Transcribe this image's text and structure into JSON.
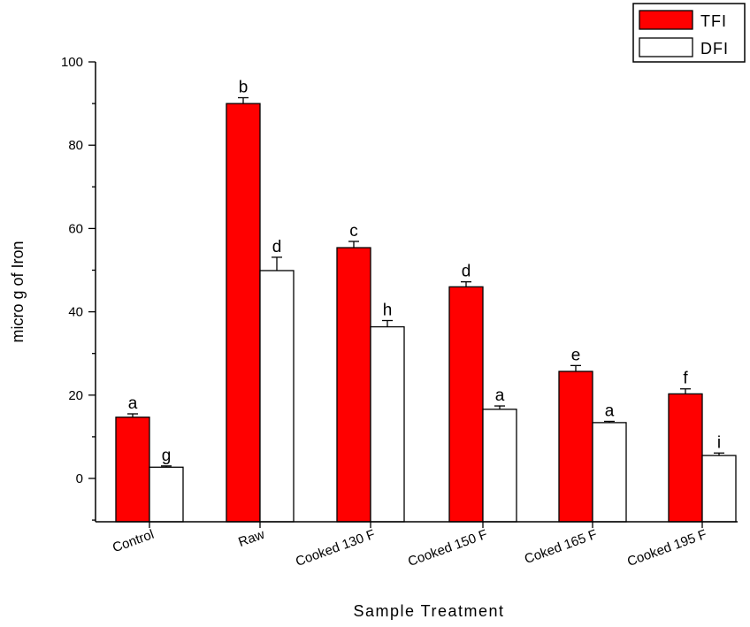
{
  "chart_data": {
    "type": "bar",
    "xlabel": "Sample Treatment",
    "ylabel": "micro g of Iron",
    "ylim": [
      -10,
      100
    ],
    "yticks": [
      0,
      20,
      40,
      60,
      80,
      100
    ],
    "categories": [
      "Control",
      "Raw",
      "Cooked 130 F",
      "Cooked 150 F",
      "Coked 165 F",
      "Cooked 195 F"
    ],
    "series": [
      {
        "name": "TFI",
        "color": "#ff0000",
        "values": [
          14.7,
          90.0,
          55.4,
          46.0,
          25.7,
          20.3
        ],
        "errors": [
          0.8,
          1.4,
          1.5,
          1.2,
          1.4,
          1.2
        ],
        "labels": [
          "a",
          "b",
          "c",
          "d",
          "e",
          "f"
        ]
      },
      {
        "name": "DFI",
        "color": "#ffffff",
        "values": [
          2.7,
          49.9,
          36.4,
          16.6,
          13.4,
          5.5
        ],
        "errors": [
          0.3,
          3.2,
          1.5,
          0.8,
          0.3,
          0.6
        ],
        "labels": [
          "g",
          "d",
          "h",
          "a",
          "a",
          "i"
        ]
      }
    ],
    "legend": {
      "position": "top-right",
      "entries": [
        "TFI",
        "DFI"
      ]
    }
  }
}
